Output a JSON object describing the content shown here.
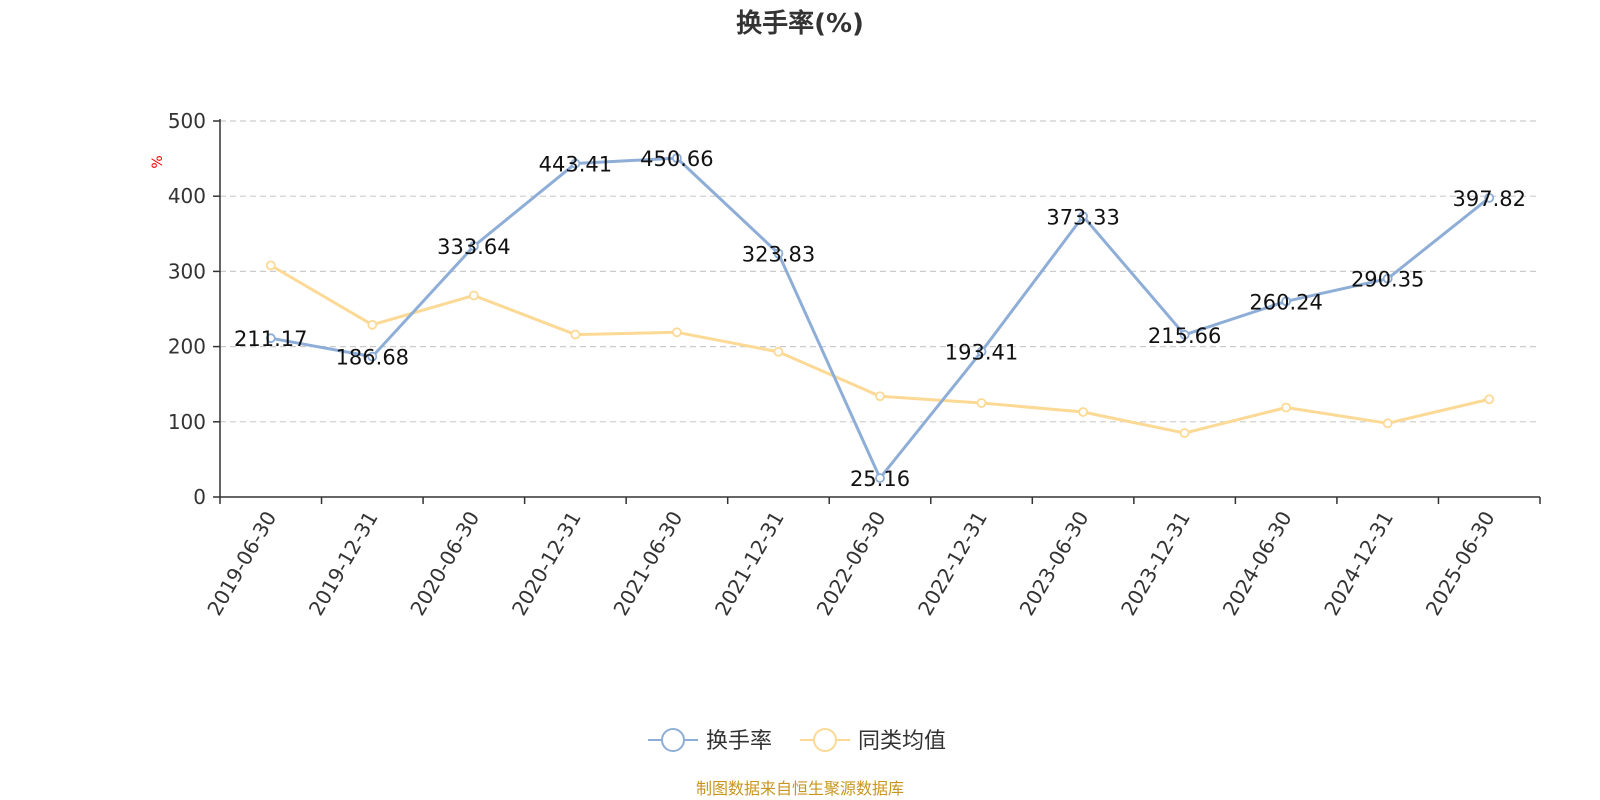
{
  "chart_data": {
    "type": "line",
    "title": "换手率(%)",
    "ylabel": "%",
    "ylim": [
      0,
      500
    ],
    "yticks": [
      0,
      100,
      200,
      300,
      400,
      500
    ],
    "grid": true,
    "legend_position": "bottom",
    "categories": [
      "2019-06-30",
      "2019-12-31",
      "2020-06-30",
      "2020-12-31",
      "2021-06-30",
      "2021-12-31",
      "2022-06-30",
      "2022-12-31",
      "2023-06-30",
      "2023-12-31",
      "2024-06-30",
      "2024-12-31",
      "2025-06-30"
    ],
    "series": [
      {
        "name": "换手率",
        "color": "#8eaed8",
        "show_labels": true,
        "values": [
          211.17,
          186.68,
          333.64,
          443.41,
          450.66,
          323.83,
          25.16,
          193.41,
          373.33,
          215.66,
          260.24,
          290.35,
          397.82
        ],
        "labels": [
          "211.17",
          "186.68",
          "333.64",
          "443.41",
          "450.66",
          "323.83",
          "25.16",
          "193.41",
          "373.33",
          "215.66",
          "260.24",
          "290.35",
          "397.82"
        ]
      },
      {
        "name": "同类均值",
        "color": "#fcd995",
        "show_labels": false,
        "values": [
          308,
          229,
          268,
          216,
          219,
          193,
          134,
          125,
          113,
          85,
          119,
          98,
          130
        ]
      }
    ],
    "source": "制图数据来自恒生聚源数据库"
  }
}
